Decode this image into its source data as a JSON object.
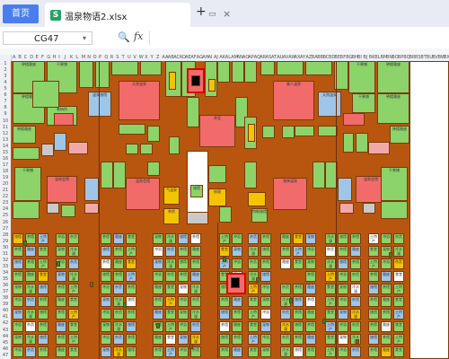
{
  "titlebar": {
    "home_tab": "首页",
    "doc_tab": "温泉物语2.xlsx",
    "doc_icon": "S",
    "monitor_icon": "monitor-icon",
    "close_icon": "close-icon",
    "new_tab": "+"
  },
  "formula_bar": {
    "name_box": "CG47",
    "zoom_icon": "zoom-icon",
    "fx": "fx",
    "formula": ""
  },
  "sheet": {
    "columns": [
      "A",
      "B",
      "C",
      "D",
      "E",
      "F",
      "G",
      "H",
      "I",
      "J",
      "K",
      "L",
      "M",
      "N",
      "O",
      "P",
      "Q",
      "R",
      "S",
      "T",
      "U",
      "V",
      "W",
      "X",
      "Y",
      "Z",
      "AA",
      "AB",
      "AC",
      "AD",
      "AE",
      "AF",
      "AG",
      "AH",
      "AI",
      "AJ",
      "AK",
      "AL",
      "AM",
      "AN",
      "AO",
      "AP",
      "AQ",
      "AR",
      "AS",
      "AT",
      "AU",
      "AV",
      "AW",
      "AX",
      "AY",
      "AZ",
      "BA",
      "BB",
      "BC",
      "BD",
      "BE",
      "BF",
      "BG",
      "BH",
      "BI",
      "BJ",
      "BK",
      "BL",
      "BM",
      "BN",
      "BO",
      "BP",
      "BQ",
      "BR",
      "BS",
      "BT",
      "BU",
      "BV",
      "BW",
      "BX",
      "BY",
      "BZ"
    ],
    "rows": [
      "1",
      "2",
      "3",
      "4",
      "5",
      "6",
      "7",
      "8",
      "9",
      "10",
      "11",
      "12",
      "13",
      "14",
      "15",
      "16",
      "17",
      "18",
      "19",
      "20",
      "21",
      "22",
      "23",
      "24",
      "25",
      "26",
      "27",
      "28",
      "29",
      "30",
      "31",
      "32",
      "33",
      "34",
      "35",
      "36",
      "37",
      "38",
      "39",
      "40",
      "41",
      "42",
      "43",
      "44",
      "45",
      "46",
      "47"
    ],
    "labels": {
      "l1": "钟楼雅座",
      "l2": "干果铺",
      "l3": "钟楼雅座",
      "l4": "干果铺",
      "l5": "温泉旅馆",
      "l6": "天然温泉",
      "l7": "天然温泉",
      "l8": "美人温泉",
      "l9": "卷纳所",
      "l10": "温泉会馆",
      "l11": "茶室",
      "l12": "温泉会馆",
      "l13": "旅馆",
      "l14": "特制旅馆",
      "l15": "普通温泉",
      "l16": "气温泉",
      "l17": "茶房",
      "l18": "修理",
      "l19": "鬼神温泉",
      "l20": "特制旅馆",
      "l21": "旅馆",
      "l22": "茶馆",
      "l23": "冷水澡",
      "l24": "土特产",
      "l25": "冲浴",
      "l26": "宠物",
      "l27": "杂货",
      "l28": "茶馆",
      "l29": "雅座",
      "l30": "食堂"
    }
  }
}
